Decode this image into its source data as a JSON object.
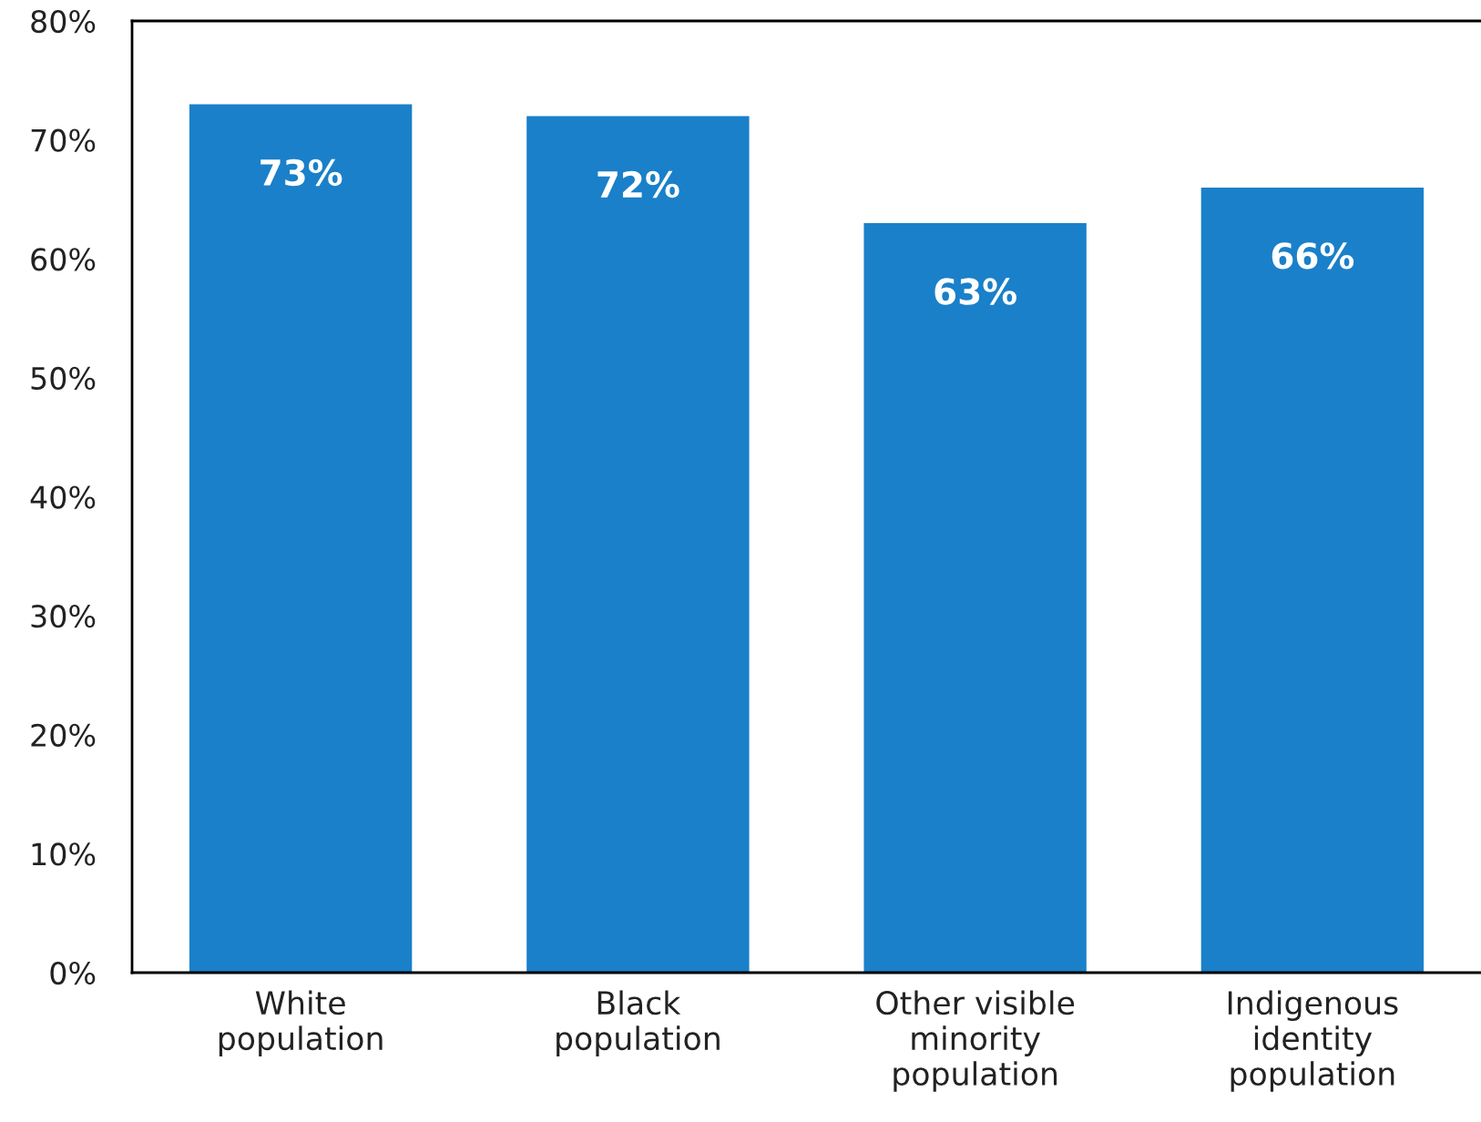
{
  "chart_data": {
    "type": "bar",
    "categories": [
      "White\npopulation",
      "Black\npopulation",
      "Other visible\nminority\npopulation",
      "Indigenous\nidentity\npopulation"
    ],
    "values": [
      73,
      72,
      63,
      66
    ],
    "value_labels": [
      "73%",
      "72%",
      "63%",
      "66%"
    ],
    "color": "#1a80c9",
    "ylim": [
      0,
      80
    ],
    "yticks": [
      {
        "value": 0,
        "label": "0%"
      },
      {
        "value": 10,
        "label": "10%"
      },
      {
        "value": 20,
        "label": "20%"
      },
      {
        "value": 30,
        "label": "30%"
      },
      {
        "value": 40,
        "label": "40%"
      },
      {
        "value": 50,
        "label": "50%"
      },
      {
        "value": 60,
        "label": "60%"
      },
      {
        "value": 70,
        "label": "70%"
      },
      {
        "value": 80,
        "label": "80%"
      }
    ],
    "grid": false,
    "legend": false
  }
}
